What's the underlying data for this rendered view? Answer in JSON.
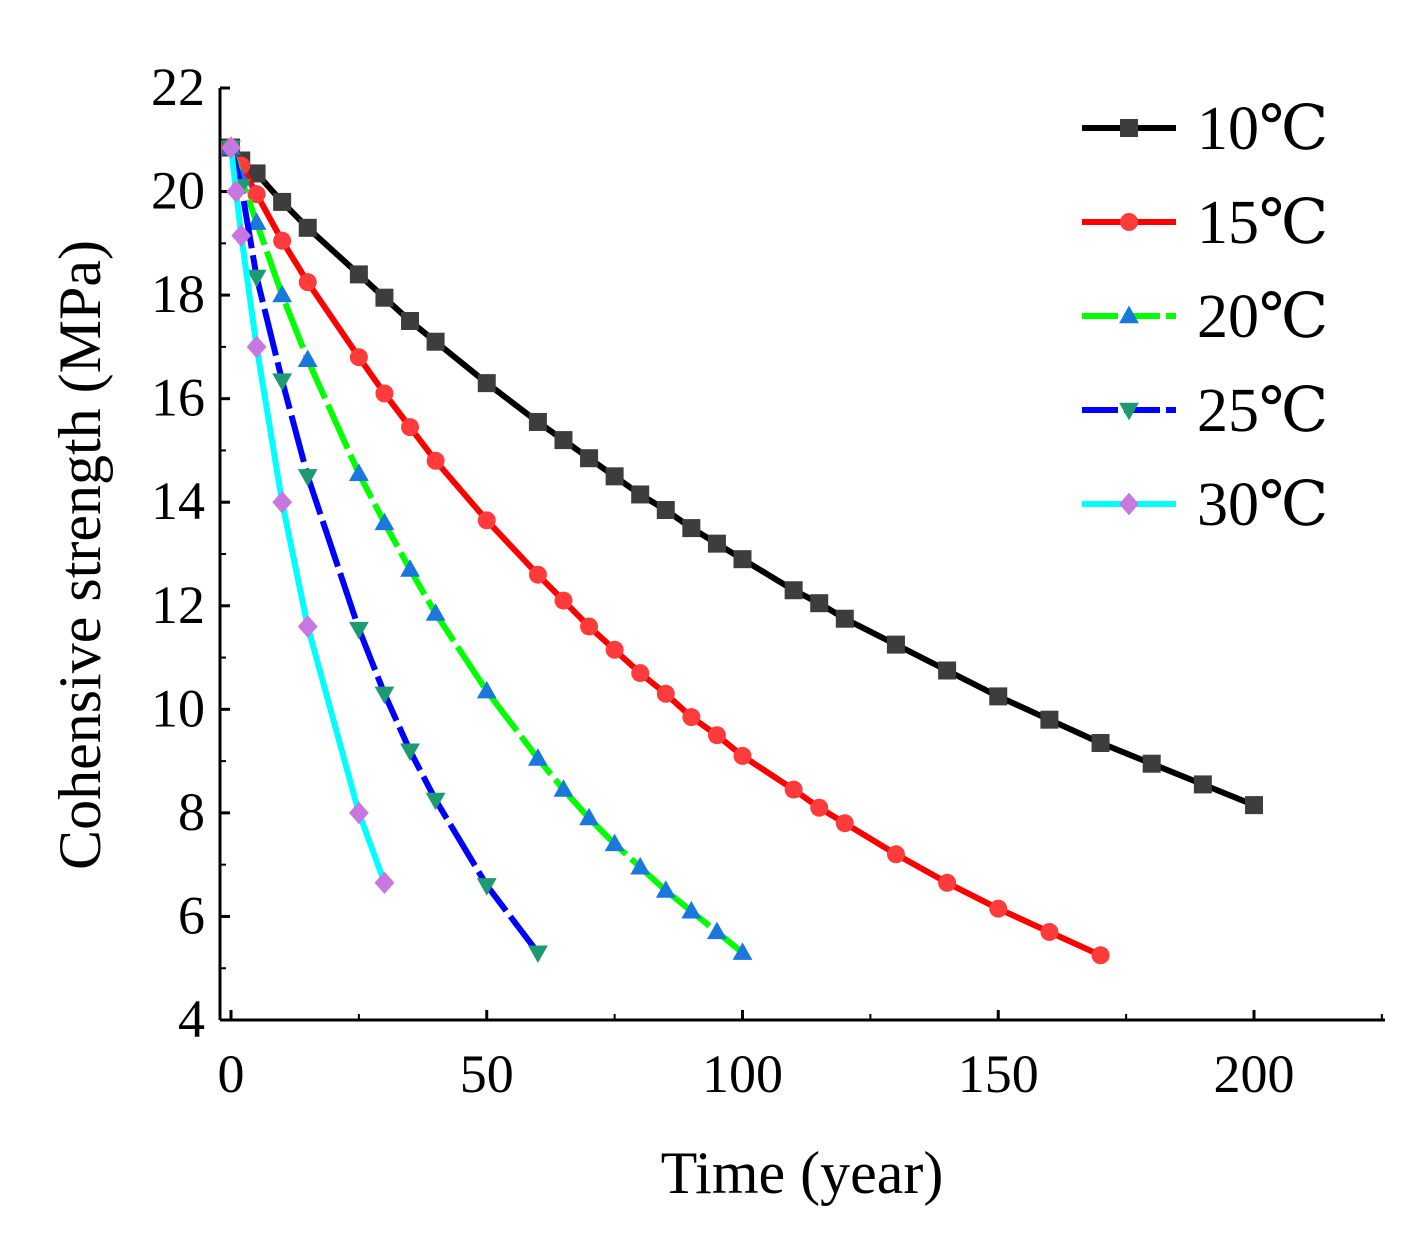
{
  "chart_data": {
    "type": "line",
    "title": "",
    "xlabel": "Time (year)",
    "ylabel": "Cohensive strength (MPa)",
    "xlim": [
      -2,
      225
    ],
    "ylim": [
      4,
      22
    ],
    "xticks": [
      0,
      50,
      100,
      150,
      200
    ],
    "yticks": [
      4,
      6,
      8,
      10,
      12,
      14,
      16,
      18,
      20,
      22
    ],
    "legend_position": "top-right",
    "grid": false,
    "series": [
      {
        "name": "10℃",
        "line_color": "#000000",
        "marker_color": "#3d3d3d",
        "marker": "square",
        "dashed": false,
        "x": [
          0,
          2,
          5,
          10,
          15,
          25,
          30,
          35,
          40,
          50,
          60,
          65,
          70,
          75,
          80,
          85,
          90,
          95,
          100,
          110,
          115,
          120,
          130,
          140,
          150,
          160,
          170,
          180,
          190,
          200
        ],
        "y": [
          20.85,
          20.6,
          20.35,
          19.8,
          19.3,
          18.4,
          17.95,
          17.5,
          17.1,
          16.3,
          15.55,
          15.2,
          14.85,
          14.5,
          14.15,
          13.85,
          13.5,
          13.2,
          12.9,
          12.3,
          12.05,
          11.75,
          11.25,
          10.75,
          10.25,
          9.8,
          9.35,
          8.95,
          8.55,
          8.15
        ]
      },
      {
        "name": "15℃",
        "line_color": "#ff0000",
        "marker_color": "#ff3b3b",
        "marker": "circle",
        "dashed": false,
        "x": [
          0,
          2,
          5,
          10,
          15,
          25,
          30,
          35,
          40,
          50,
          60,
          65,
          70,
          75,
          80,
          85,
          90,
          95,
          100,
          110,
          115,
          120,
          130,
          140,
          150,
          160,
          170
        ],
        "y": [
          20.85,
          20.5,
          19.95,
          19.05,
          18.25,
          16.8,
          16.1,
          15.45,
          14.8,
          13.65,
          12.6,
          12.1,
          11.6,
          11.15,
          10.7,
          10.3,
          9.85,
          9.5,
          9.1,
          8.45,
          8.1,
          7.8,
          7.2,
          6.65,
          6.15,
          5.7,
          5.25
        ]
      },
      {
        "name": "20℃",
        "line_color": "#00ff00",
        "marker_color": "#1a78dd",
        "marker": "triangle-up",
        "dashed": true,
        "x": [
          0,
          2,
          5,
          10,
          15,
          25,
          30,
          35,
          40,
          50,
          60,
          65,
          70,
          75,
          80,
          85,
          90,
          95,
          100
        ],
        "y": [
          20.85,
          20.25,
          19.4,
          18.0,
          16.75,
          14.55,
          13.6,
          12.7,
          11.85,
          10.35,
          9.05,
          8.45,
          7.9,
          7.4,
          6.95,
          6.5,
          6.1,
          5.7,
          5.3
        ]
      },
      {
        "name": "25℃",
        "line_color": "#0000ff",
        "marker_color": "#1e9a73",
        "marker": "triangle-down",
        "dashed": true,
        "x": [
          0,
          2,
          5,
          10,
          15,
          25,
          30,
          35,
          40,
          50,
          60
        ],
        "y": [
          20.85,
          20.1,
          18.35,
          16.35,
          14.5,
          11.55,
          10.3,
          9.2,
          8.25,
          6.6,
          5.3
        ]
      },
      {
        "name": "30℃",
        "line_color": "#00ffff",
        "marker_color": "#c678e0",
        "marker": "diamond",
        "dashed": false,
        "x": [
          0,
          1,
          2,
          5,
          10,
          15,
          25,
          30
        ],
        "y": [
          20.85,
          20.0,
          19.15,
          17.0,
          14.0,
          11.6,
          8.0,
          6.65
        ]
      }
    ]
  }
}
